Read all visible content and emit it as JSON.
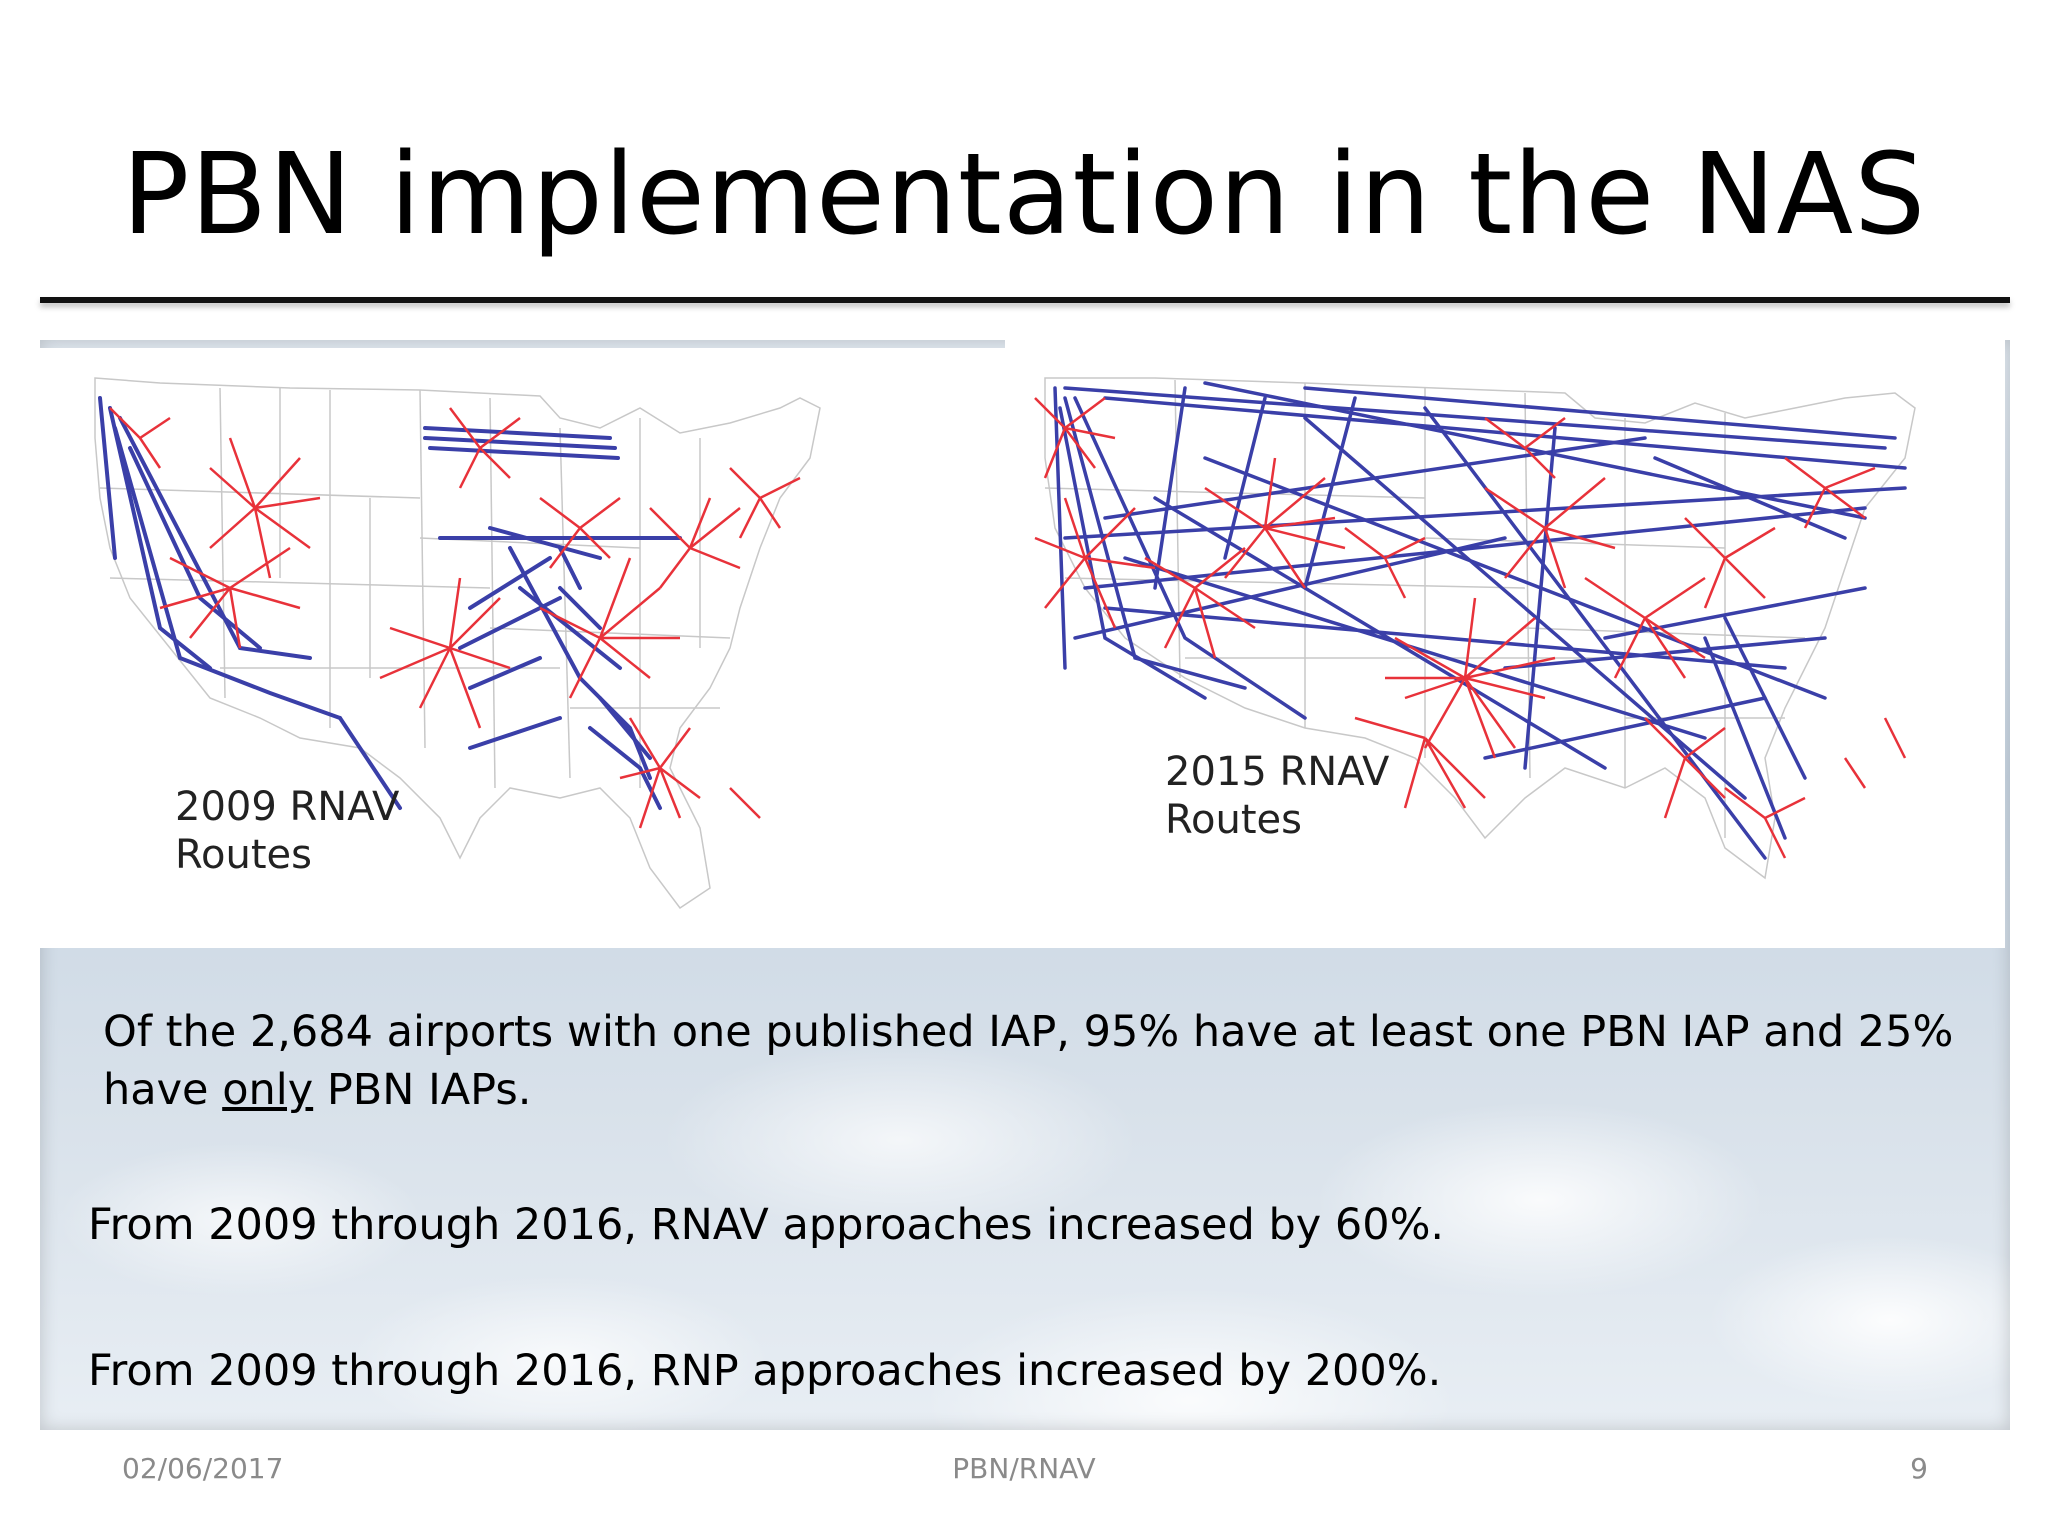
{
  "slide": {
    "title": "PBN implementation in the NAS",
    "maps": [
      {
        "label_line1": "2009 RNAV",
        "label_line2": "Routes"
      },
      {
        "label_line1": "2015 RNAV",
        "label_line2": "Routes"
      }
    ],
    "paragraph1": {
      "lead": "Of the 2,684 airports with one published IAP, 95% have at least one PBN IAP and 25% have ",
      "underlined": "only",
      "tail": " PBN IAPs."
    },
    "paragraph2": "From 2009 through 2016, RNAV approaches increased by 60%.",
    "paragraph3": "From 2009 through 2016, RNP approaches increased by 200%.",
    "footer": {
      "date": "02/06/2017",
      "center": "PBN/RNAV",
      "page_number": "9"
    }
  },
  "colors": {
    "route_red": "#e8323a",
    "route_blue": "#3a3fa8",
    "state_border": "#c8c8c8"
  }
}
